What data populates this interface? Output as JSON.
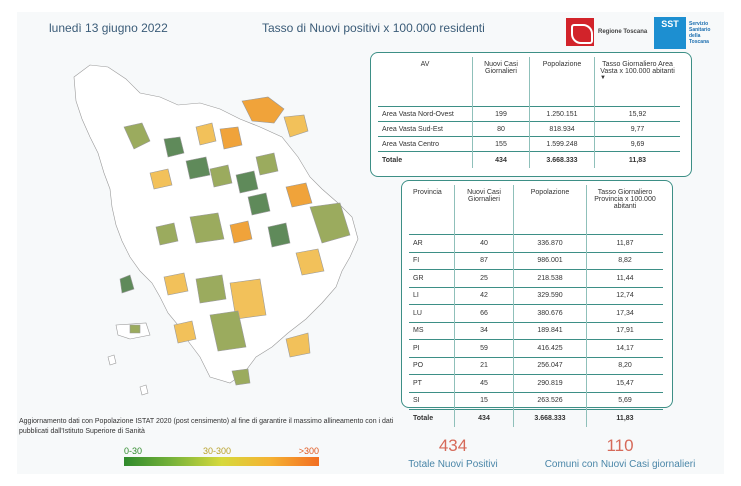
{
  "header": {
    "date": "lunedì 13 giugno 2022",
    "title": "Tasso di Nuovi positivi x 100.000 residenti",
    "logo_regione": "Regione Toscana",
    "logo_sst_mark": "SST",
    "logo_sst_text": "Servizio Sanitario della Toscana"
  },
  "av_table": {
    "headers": [
      "AV",
      "Nuovi Casi Giornalieri",
      "Popolazione",
      "Tasso Giornaliero Area Vasta x 100.000 abitanti"
    ],
    "sort_icon": "sort-down-icon",
    "rows": [
      [
        "Area Vasta Nord-Ovest",
        "199",
        "1.250.151",
        "15,92"
      ],
      [
        "Area Vasta Sud-Est",
        "80",
        "818.934",
        "9,77"
      ],
      [
        "Area Vasta Centro",
        "155",
        "1.599.248",
        "9,69"
      ]
    ],
    "total": [
      "Totale",
      "434",
      "3.668.333",
      "11,83"
    ]
  },
  "prov_table": {
    "headers": [
      "Provincia",
      "Nuovi Casi Giornalieri",
      "Popolazione",
      "Tasso Giornaliero Provincia x 100.000 abitanti"
    ],
    "rows": [
      [
        "AR",
        "40",
        "336.870",
        "11,87"
      ],
      [
        "FI",
        "87",
        "986.001",
        "8,82"
      ],
      [
        "GR",
        "25",
        "218.538",
        "11,44"
      ],
      [
        "LI",
        "42",
        "329.590",
        "12,74"
      ],
      [
        "LU",
        "66",
        "380.676",
        "17,34"
      ],
      [
        "MS",
        "34",
        "189.841",
        "17,91"
      ],
      [
        "PI",
        "59",
        "416.425",
        "14,17"
      ],
      [
        "PO",
        "21",
        "256.047",
        "8,20"
      ],
      [
        "PT",
        "45",
        "290.819",
        "15,47"
      ],
      [
        "SI",
        "15",
        "263.526",
        "5,69"
      ]
    ],
    "total": [
      "Totale",
      "434",
      "3.668.333",
      "11,83"
    ]
  },
  "note": "Aggiornamento dati con Popolazione ISTAT 2020 (post censimento) al fine di garantire il massimo allineamento con i dati pubblicati dall'Istituto Superiore di Sanità",
  "legend": {
    "low": "0-30",
    "mid": "30-300",
    "high": ">300",
    "colors": [
      "#2f8a2c",
      "#d6d93c",
      "#f26e22"
    ]
  },
  "kpis": [
    {
      "value": "434",
      "label": "Totale Nuovi Positivi"
    },
    {
      "value": "110",
      "label": "Comuni con Nuovi Casi giornalieri"
    }
  ],
  "map_colors": {
    "white": "#ffffff",
    "green_dark": "#5f8a5a",
    "green_olive": "#9bab5e",
    "yellow": "#f2c15a",
    "orange": "#f0a33a",
    "border": "#9a9a9a"
  }
}
